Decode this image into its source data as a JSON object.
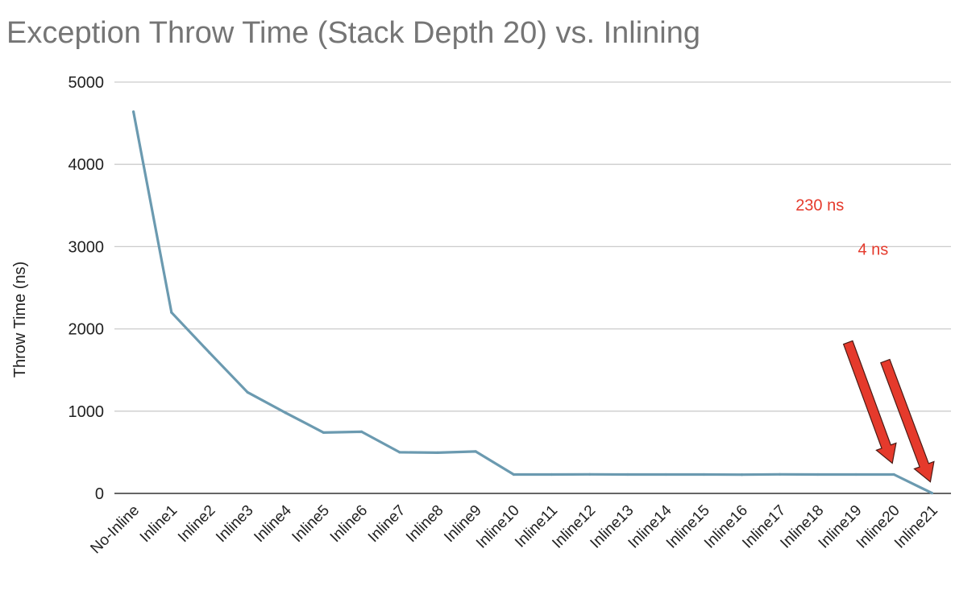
{
  "chart_data": {
    "type": "line",
    "title": "Exception Throw Time (Stack Depth 20) vs. Inlining",
    "xlabel": "",
    "ylabel": "Throw Time (ns)",
    "ylim": [
      0,
      5000
    ],
    "yticks": [
      0,
      1000,
      2000,
      3000,
      4000,
      5000
    ],
    "grid": true,
    "legend": "none",
    "categories": [
      "No-Inline",
      "Inline1",
      "Inline2",
      "Inline3",
      "Inline4",
      "Inline5",
      "Inline6",
      "Inline7",
      "Inline8",
      "Inline9",
      "Inline10",
      "Inline11",
      "Inline12",
      "Inline13",
      "Inline14",
      "Inline15",
      "Inline16",
      "Inline17",
      "Inline18",
      "Inline19",
      "Inline20",
      "Inline21"
    ],
    "series": [
      {
        "color": "#6b9ab0",
        "values": [
          4640,
          2200,
          1710,
          1230,
          980,
          740,
          750,
          500,
          495,
          510,
          230,
          230,
          232,
          230,
          230,
          230,
          228,
          232,
          230,
          230,
          230,
          4
        ]
      }
    ],
    "annotations": [
      {
        "text": "230 ns",
        "category": "Inline20",
        "value": 230,
        "color": "#e53a2c"
      },
      {
        "text": "4 ns",
        "category": "Inline21",
        "value": 4,
        "color": "#e53a2c"
      }
    ],
    "colors": {
      "title": "#757575",
      "grid": "#cccccc",
      "axis": "#333333",
      "text": "#222222",
      "annotation": "#e53a2c"
    }
  }
}
